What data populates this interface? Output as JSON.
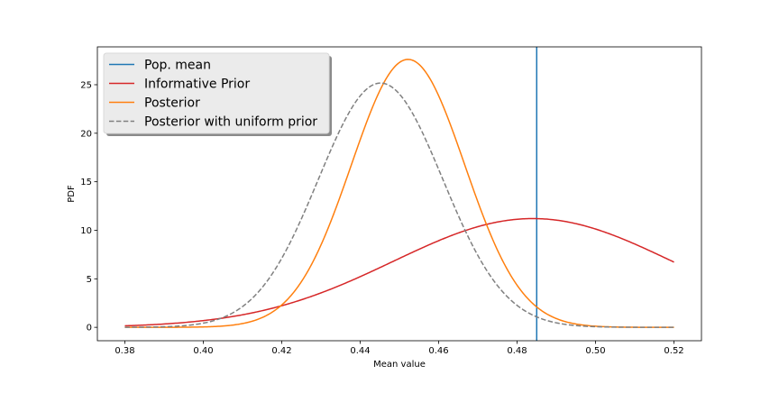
{
  "chart_data": {
    "type": "line",
    "title": "",
    "xlabel": "Mean value",
    "ylabel": "PDF",
    "xlim": [
      0.373,
      0.527
    ],
    "ylim": [
      -1.38,
      28.9
    ],
    "xticks": [
      0.38,
      0.4,
      0.42,
      0.44,
      0.46,
      0.48,
      0.5,
      0.52
    ],
    "xtick_labels": [
      "0.38",
      "0.40",
      "0.42",
      "0.44",
      "0.46",
      "0.48",
      "0.50",
      "0.52"
    ],
    "yticks": [
      0,
      5,
      10,
      15,
      20,
      25
    ],
    "ytick_labels": [
      "0",
      "5",
      "10",
      "15",
      "20",
      "25"
    ],
    "grid": false,
    "legend_position": "top-left",
    "x_range": [
      0.38,
      0.52
    ],
    "series": [
      {
        "name": "Pop. mean",
        "kind": "vline",
        "x": 0.485,
        "color": "#1f77b4",
        "style": "solid"
      },
      {
        "name": "Informative Prior",
        "kind": "normal",
        "mu": 0.484,
        "sigma": 0.0356,
        "color": "#d62728",
        "style": "solid"
      },
      {
        "name": "Posterior",
        "kind": "normal",
        "mu": 0.4522,
        "sigma": 0.01445,
        "color": "#ff7f0e",
        "style": "solid"
      },
      {
        "name": "Posterior with uniform prior",
        "kind": "normal",
        "mu": 0.4452,
        "sigma": 0.01585,
        "color": "#808080",
        "style": "dashed"
      }
    ]
  }
}
